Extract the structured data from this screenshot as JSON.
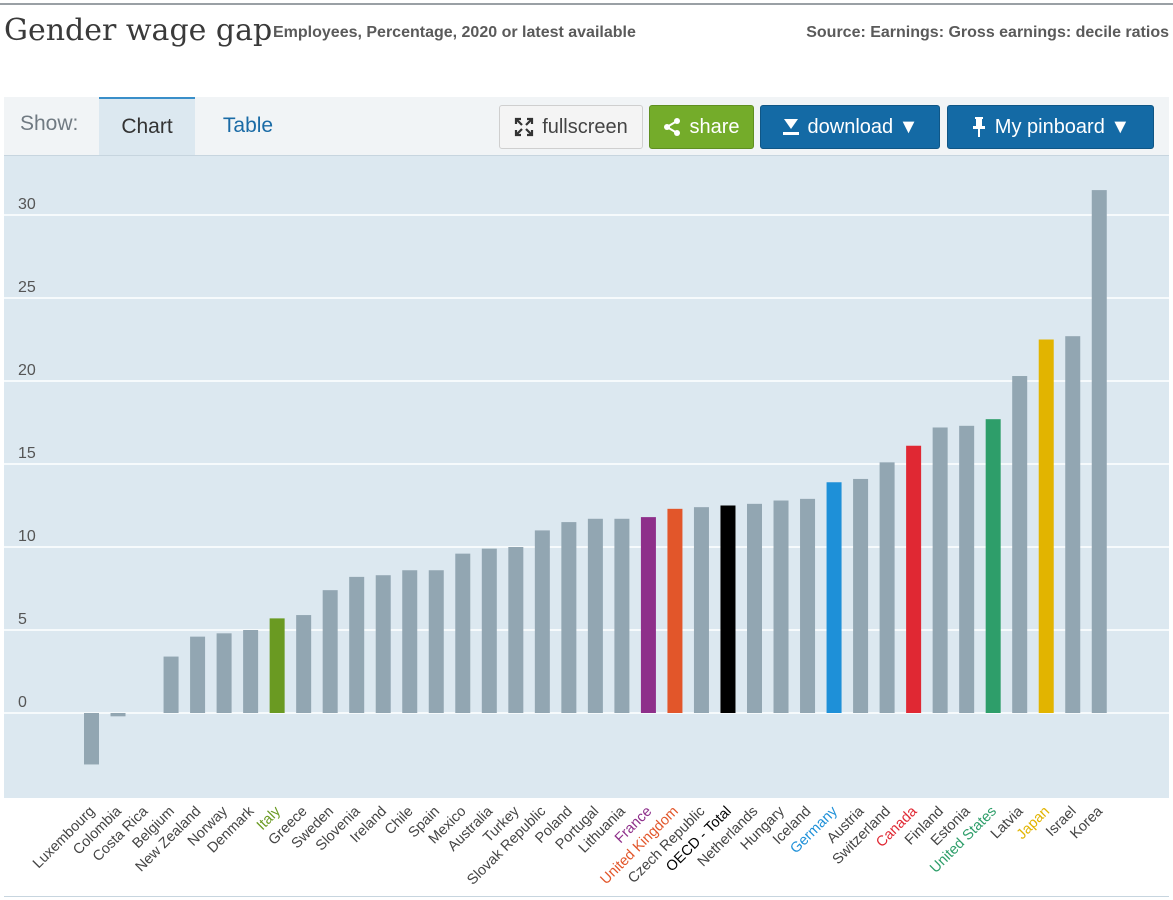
{
  "header": {
    "title": "Gender wage gap",
    "subtitle": "Employees, Percentage, 2020 or latest available",
    "source": "Source: Earnings: Gross earnings: decile ratios"
  },
  "toolbar": {
    "show_label": "Show:",
    "tabs": [
      "Chart",
      "Table"
    ],
    "active_tab": "Chart",
    "fullscreen_label": "fullscreen",
    "share_label": "share",
    "download_label": "download ▼",
    "pinboard_label": "My pinboard ▼"
  },
  "colors": {
    "plot_background": "#dce8f0",
    "default_bar": "#92a6b2",
    "share_button": "#74ac2a",
    "primary_button": "#146aa5"
  },
  "chart_data": {
    "type": "bar",
    "title": "Gender wage gap",
    "ylim": [
      -5,
      32
    ],
    "yticks": [
      0,
      5,
      10,
      15,
      20,
      25,
      30
    ],
    "grid": true,
    "categories": [
      "Luxembourg",
      "Colombia",
      "Costa Rica",
      "Belgium",
      "New Zealand",
      "Norway",
      "Denmark",
      "Italy",
      "Greece",
      "Sweden",
      "Slovenia",
      "Ireland",
      "Chile",
      "Spain",
      "Mexico",
      "Australia",
      "Turkey",
      "Slovak Republic",
      "Poland",
      "Portugal",
      "Lithuania",
      "France",
      "United Kingdom",
      "Czech Republic",
      "OECD - Total",
      "Netherlands",
      "Hungary",
      "Iceland",
      "Germany",
      "Austria",
      "Switzerland",
      "Canada",
      "Finland",
      "Estonia",
      "United States",
      "Latvia",
      "Japan",
      "Israel",
      "Korea"
    ],
    "values": [
      -3.1,
      -0.2,
      0,
      3.4,
      4.6,
      4.8,
      5.0,
      5.7,
      5.9,
      7.4,
      8.2,
      8.3,
      8.6,
      8.6,
      9.6,
      9.9,
      10.0,
      11.0,
      11.5,
      11.7,
      11.7,
      11.8,
      12.3,
      12.4,
      12.5,
      12.6,
      12.8,
      12.9,
      13.9,
      14.1,
      15.1,
      16.1,
      17.2,
      17.3,
      17.7,
      20.3,
      22.5,
      22.7,
      31.5
    ],
    "highlight_colors": {
      "Italy": "#6a9a22",
      "France": "#8e2f8a",
      "United Kingdom": "#e2562a",
      "OECD - Total": "#000000",
      "Germany": "#1e90d8",
      "Canada": "#e02833",
      "United States": "#2e9e6a",
      "Japan": "#e2b400"
    }
  }
}
